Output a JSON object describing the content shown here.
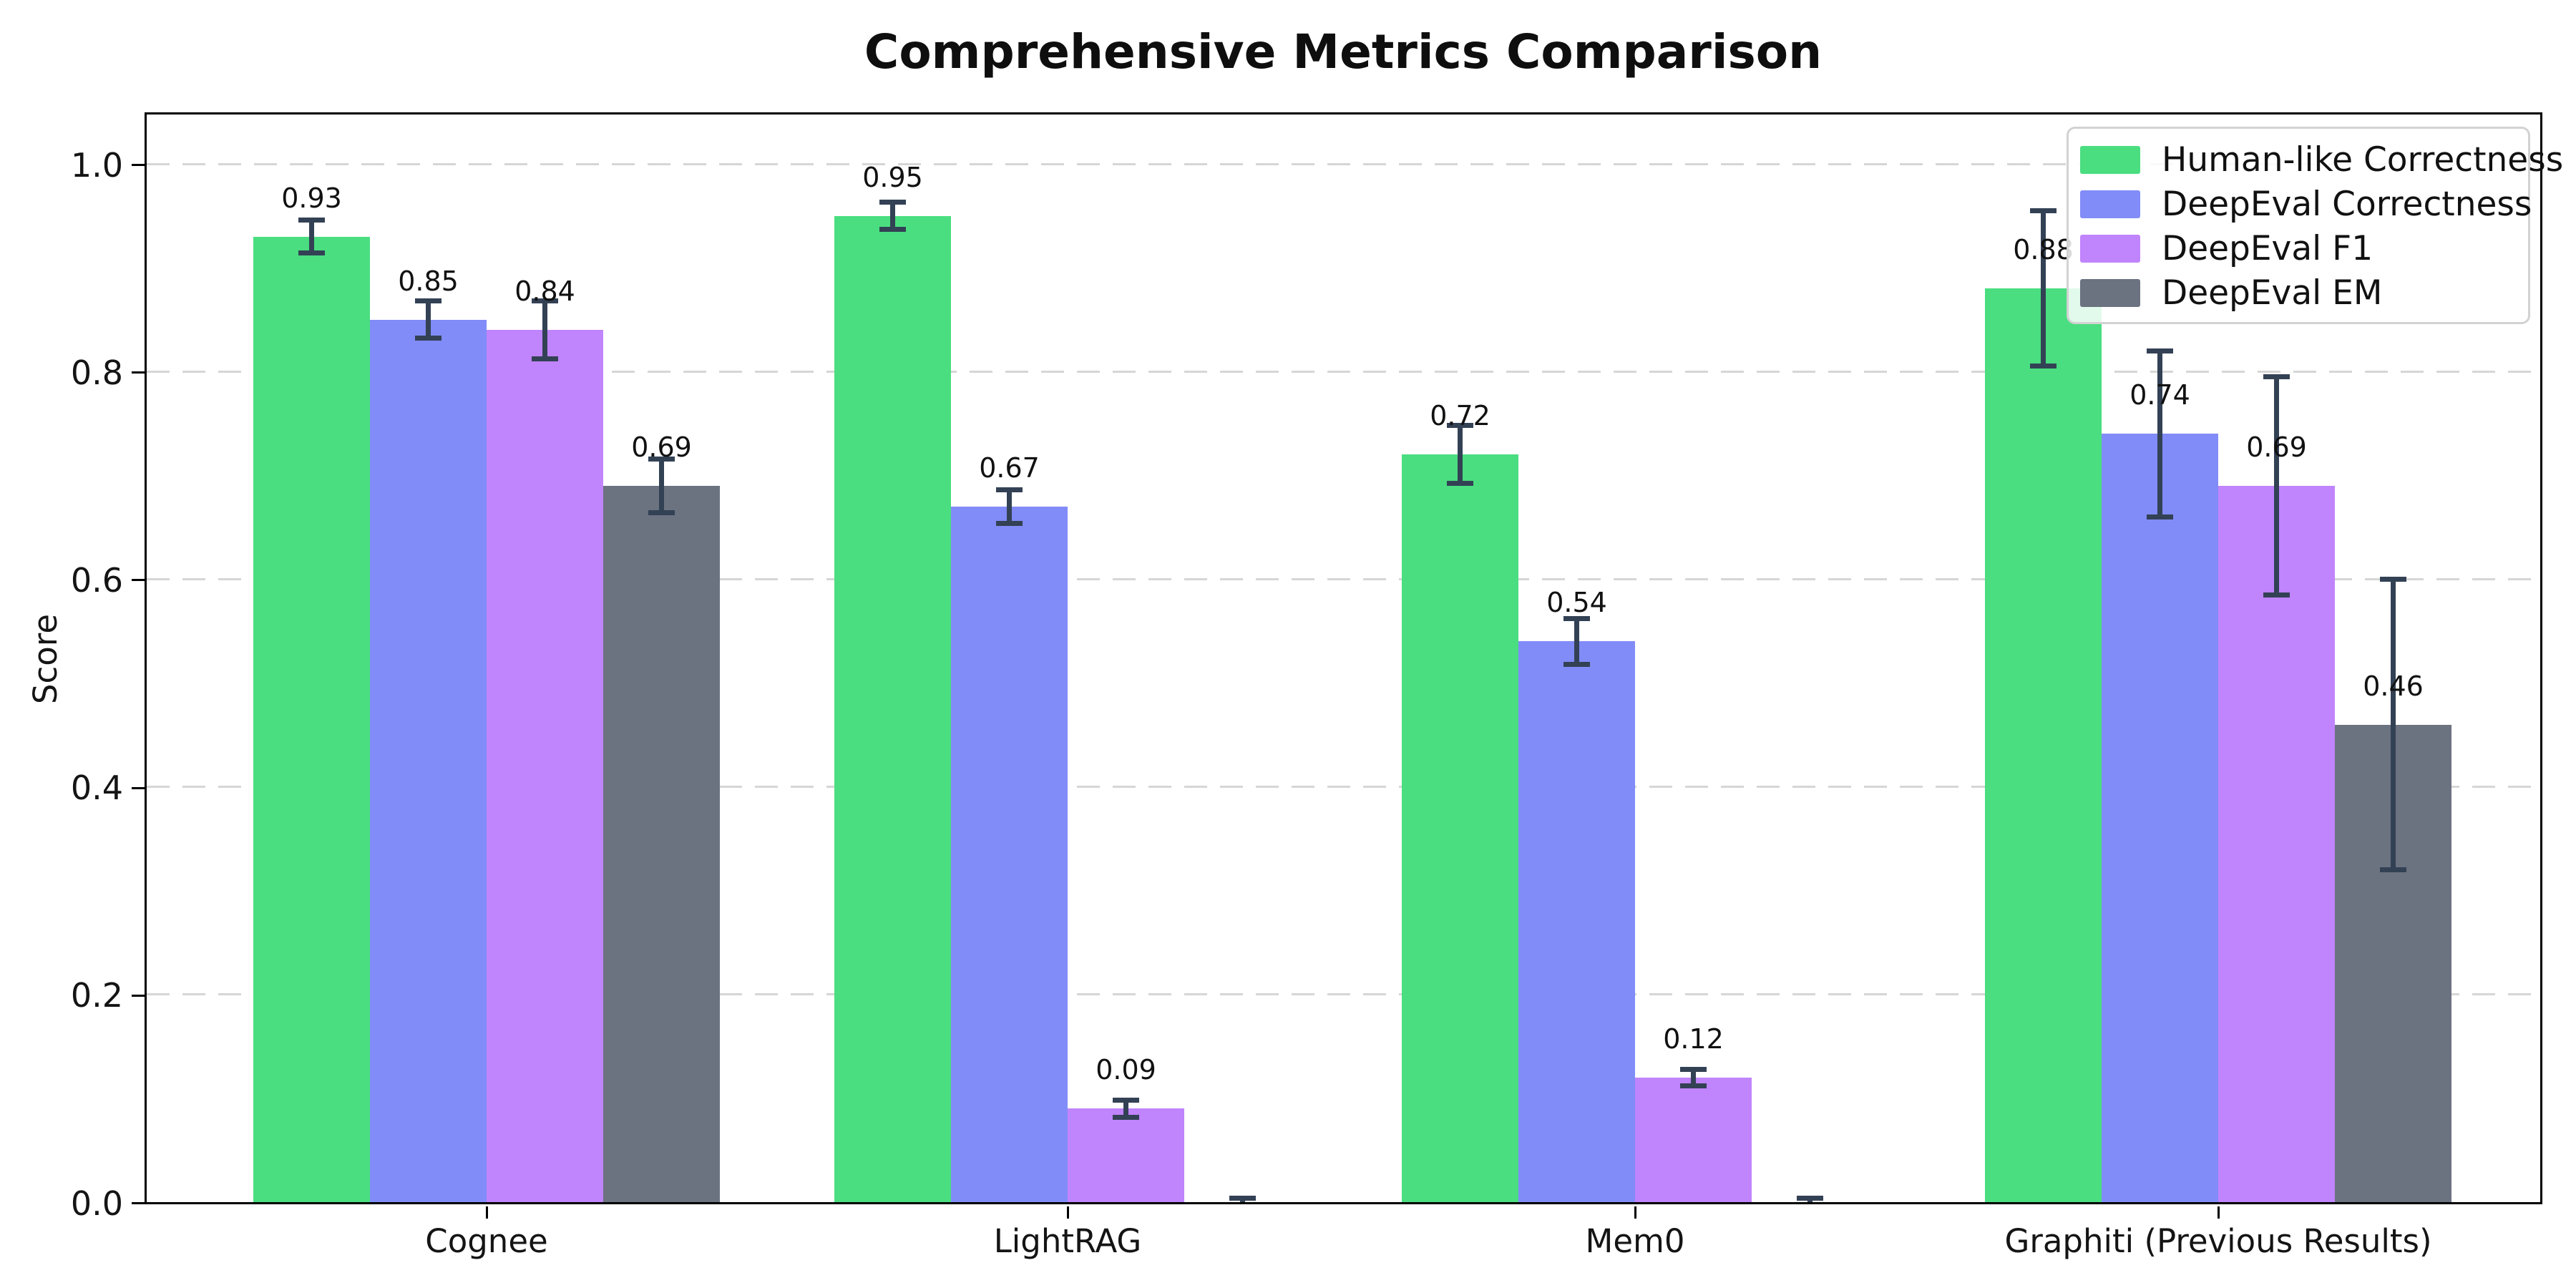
{
  "chart_data": {
    "type": "bar",
    "title": "Comprehensive Metrics Comparison",
    "ylabel": "Score",
    "xlabel": "",
    "categories": [
      "Cognee",
      "LightRAG",
      "Mem0",
      "Graphiti (Previous Results)"
    ],
    "series": [
      {
        "name": "Human-like Correctness",
        "color": "#4ade80",
        "values": [
          0.93,
          0.95,
          0.72,
          0.88
        ],
        "errors": [
          0.016,
          0.013,
          0.028,
          0.075
        ],
        "labels": [
          "0.93",
          "0.95",
          "0.72",
          "0.88"
        ]
      },
      {
        "name": "DeepEval Correctness",
        "color": "#818cf8",
        "values": [
          0.85,
          0.67,
          0.54,
          0.74
        ],
        "errors": [
          0.018,
          0.016,
          0.022,
          0.08
        ],
        "labels": [
          "0.85",
          "0.67",
          "0.54",
          "0.74"
        ]
      },
      {
        "name": "DeepEval F1",
        "color": "#c084fc",
        "values": [
          0.84,
          0.09,
          0.12,
          0.69
        ],
        "errors": [
          0.028,
          0.008,
          0.008,
          0.105
        ],
        "labels": [
          "0.84",
          "0.09",
          "0.12",
          "0.69"
        ]
      },
      {
        "name": "DeepEval EM",
        "color": "#6b7280",
        "values": [
          0.69,
          0.0,
          0.0,
          0.46
        ],
        "errors": [
          0.026,
          0.004,
          0.004,
          0.14
        ],
        "labels": [
          "0.69",
          "",
          "",
          "0.46"
        ]
      }
    ],
    "y_ticks": [
      "0.0",
      "0.2",
      "0.4",
      "0.6",
      "0.8",
      "1.0"
    ],
    "ylim": [
      0,
      1.05
    ],
    "grid": "horizontal-dashed",
    "gridline_color": "#d6d6d6",
    "error_bar_color": "#334155",
    "legend_position": "upper-right"
  }
}
